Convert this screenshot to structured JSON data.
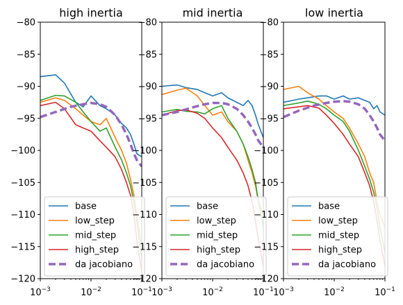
{
  "chart_data": [
    {
      "type": "line",
      "title": "high inertia",
      "xscale": "log",
      "xlim": [
        0.001,
        0.1
      ],
      "ylim": [
        -120,
        -80
      ],
      "yticks": [
        "−80",
        "−85",
        "−90",
        "−95",
        "−100",
        "−105",
        "−110",
        "−115",
        "−120"
      ],
      "xticks": [
        "10",
        "10",
        "10"
      ],
      "xtick_exponents": [
        "−3",
        "−2",
        "−1"
      ],
      "legend_position": "lower-left",
      "series": [
        {
          "name": "base",
          "color": "#1f77b4",
          "x": [
            0.001,
            0.002,
            0.003,
            0.005,
            0.007,
            0.01,
            0.015,
            0.02,
            0.03,
            0.04,
            0.05,
            0.06,
            0.07,
            0.08,
            0.1
          ],
          "y": [
            -88.5,
            -88.2,
            -89.5,
            -92.5,
            -93.2,
            -91.5,
            -93,
            -93.5,
            -94.5,
            -95.8,
            -96.5,
            -97.5,
            -99,
            -100.5,
            -101
          ]
        },
        {
          "name": "low_step",
          "color": "#ff7f0e",
          "x": [
            0.001,
            0.002,
            0.003,
            0.005,
            0.007,
            0.01,
            0.015,
            0.02,
            0.03,
            0.04,
            0.05,
            0.06,
            0.07,
            0.08,
            0.1
          ],
          "y": [
            -92.5,
            -91.8,
            -92.2,
            -93.5,
            -94.5,
            -95.5,
            -96,
            -95,
            -98,
            -100,
            -102,
            -104.5,
            -107,
            -110,
            -115
          ]
        },
        {
          "name": "mid_step",
          "color": "#2ca02c",
          "x": [
            0.001,
            0.002,
            0.003,
            0.005,
            0.007,
            0.01,
            0.015,
            0.02,
            0.03,
            0.04,
            0.05,
            0.06,
            0.07,
            0.08,
            0.1
          ],
          "y": [
            -92.2,
            -91.4,
            -91.5,
            -92.5,
            -94,
            -95.5,
            -97,
            -96.5,
            -99.5,
            -101.5,
            -103.5,
            -105.5,
            -108,
            -111,
            -117
          ]
        },
        {
          "name": "high_step",
          "color": "#d62728",
          "x": [
            0.001,
            0.002,
            0.003,
            0.005,
            0.007,
            0.01,
            0.015,
            0.02,
            0.03,
            0.04,
            0.05,
            0.06,
            0.07,
            0.08,
            0.1
          ],
          "y": [
            -93,
            -92.5,
            -93.5,
            -96,
            -96.5,
            -97,
            -98.5,
            -99.5,
            -101,
            -103,
            -105,
            -107,
            -110,
            -114,
            -119
          ]
        },
        {
          "name": "da jacobiano",
          "color": "#9467bd",
          "dashed": true,
          "x": [
            0.001,
            0.002,
            0.004,
            0.007,
            0.01,
            0.015,
            0.02,
            0.03,
            0.04,
            0.05,
            0.06,
            0.07,
            0.08,
            0.1
          ],
          "y": [
            -94.8,
            -94,
            -93.2,
            -92.8,
            -92.6,
            -92.8,
            -93.2,
            -94.5,
            -96,
            -97.5,
            -99,
            -100.5,
            -101.5,
            -102.5
          ]
        }
      ]
    },
    {
      "type": "line",
      "title": "mid inertia",
      "xscale": "log",
      "xlim": [
        0.001,
        0.1
      ],
      "ylim": [
        -120,
        -80
      ],
      "yticks": [
        "−80",
        "−85",
        "−90",
        "−95",
        "−100",
        "−105",
        "−110",
        "−115",
        "−120"
      ],
      "xticks": [
        "10",
        "10",
        "10"
      ],
      "xtick_exponents": [
        "−3",
        "−2",
        "−1"
      ],
      "legend_position": "lower-left",
      "series": [
        {
          "name": "base",
          "color": "#1f77b4",
          "x": [
            0.001,
            0.002,
            0.003,
            0.005,
            0.007,
            0.01,
            0.015,
            0.02,
            0.03,
            0.04,
            0.05,
            0.06,
            0.07,
            0.08,
            0.1
          ],
          "y": [
            -90,
            -89.8,
            -90.2,
            -90.5,
            -91,
            -91.5,
            -91,
            -91.8,
            -92.5,
            -93,
            -92.2,
            -93,
            -94.5,
            -96,
            -98
          ]
        },
        {
          "name": "low_step",
          "color": "#ff7f0e",
          "x": [
            0.001,
            0.002,
            0.003,
            0.005,
            0.007,
            0.01,
            0.015,
            0.02,
            0.03,
            0.04,
            0.05,
            0.06,
            0.07,
            0.08,
            0.1
          ],
          "y": [
            -91.3,
            -90.6,
            -90.3,
            -91.5,
            -93,
            -94.5,
            -94,
            -95.5,
            -97,
            -99,
            -101.5,
            -103.5,
            -105.5,
            -108,
            -110
          ]
        },
        {
          "name": "mid_step",
          "color": "#2ca02c",
          "x": [
            0.001,
            0.002,
            0.003,
            0.005,
            0.007,
            0.01,
            0.015,
            0.02,
            0.03,
            0.04,
            0.05,
            0.06,
            0.07,
            0.08,
            0.1
          ],
          "y": [
            -94,
            -93.6,
            -93.9,
            -94,
            -94.3,
            -93.5,
            -93,
            -95,
            -97,
            -99,
            -101,
            -103,
            -105,
            -108,
            -112
          ]
        },
        {
          "name": "high_step",
          "color": "#d62728",
          "x": [
            0.001,
            0.002,
            0.003,
            0.005,
            0.007,
            0.01,
            0.015,
            0.02,
            0.03,
            0.04,
            0.05,
            0.06,
            0.07,
            0.08,
            0.1
          ],
          "y": [
            -94.5,
            -93.8,
            -93.7,
            -94.2,
            -95,
            -96.5,
            -98,
            -99.5,
            -101.5,
            -103.5,
            -105.5,
            -108,
            -111,
            -114,
            -118
          ]
        },
        {
          "name": "da jacobiano",
          "color": "#9467bd",
          "dashed": true,
          "x": [
            0.001,
            0.002,
            0.004,
            0.007,
            0.01,
            0.015,
            0.02,
            0.03,
            0.04,
            0.05,
            0.06,
            0.07,
            0.08,
            0.1
          ],
          "y": [
            -94.5,
            -94,
            -93.3,
            -92.8,
            -92.6,
            -92.6,
            -92.8,
            -93.5,
            -94.5,
            -95.5,
            -96.5,
            -97.5,
            -98.5,
            -99.5
          ]
        }
      ]
    },
    {
      "type": "line",
      "title": "low inertia",
      "xscale": "log",
      "xlim": [
        0.001,
        0.1
      ],
      "ylim": [
        -120,
        -80
      ],
      "yticks": [
        "−80",
        "−85",
        "−90",
        "−95",
        "−100",
        "−105",
        "−110",
        "−115",
        "−120"
      ],
      "xticks": [
        "10",
        "10",
        "10"
      ],
      "xtick_exponents": [
        "−3",
        "−2",
        "−1"
      ],
      "legend_position": "lower-left",
      "series": [
        {
          "name": "base",
          "color": "#1f77b4",
          "x": [
            0.001,
            0.002,
            0.003,
            0.005,
            0.007,
            0.01,
            0.015,
            0.02,
            0.03,
            0.04,
            0.05,
            0.06,
            0.07,
            0.08,
            0.1
          ],
          "y": [
            -92.5,
            -92,
            -91.8,
            -91.5,
            -91.5,
            -92,
            -91.5,
            -92,
            -91.8,
            -92.2,
            -92.5,
            -93.5,
            -93,
            -94,
            -94.5
          ]
        },
        {
          "name": "low_step",
          "color": "#ff7f0e",
          "x": [
            0.001,
            0.002,
            0.003,
            0.005,
            0.007,
            0.01,
            0.015,
            0.02,
            0.03,
            0.04,
            0.05,
            0.06,
            0.07,
            0.08,
            0.1
          ],
          "y": [
            -90.5,
            -90,
            -91,
            -92,
            -93,
            -94,
            -95,
            -96.5,
            -99,
            -101,
            -103.5,
            -105,
            -108,
            -110,
            -112
          ]
        },
        {
          "name": "mid_step",
          "color": "#2ca02c",
          "x": [
            0.001,
            0.002,
            0.003,
            0.005,
            0.007,
            0.01,
            0.015,
            0.02,
            0.03,
            0.04,
            0.05,
            0.06,
            0.07,
            0.08,
            0.1
          ],
          "y": [
            -93,
            -92.6,
            -92.3,
            -92.8,
            -93.5,
            -94.5,
            -95.5,
            -97,
            -100,
            -102.5,
            -104.5,
            -106.5,
            -109,
            -112,
            -116
          ]
        },
        {
          "name": "high_step",
          "color": "#d62728",
          "x": [
            0.001,
            0.002,
            0.003,
            0.005,
            0.007,
            0.01,
            0.015,
            0.02,
            0.03,
            0.04,
            0.05,
            0.06,
            0.07,
            0.08,
            0.1
          ],
          "y": [
            -93.5,
            -93.2,
            -93,
            -93.4,
            -94.5,
            -95.8,
            -97.5,
            -99,
            -101,
            -103.5,
            -105.5,
            -108,
            -111,
            -114,
            -118
          ]
        },
        {
          "name": "da jacobiano",
          "color": "#9467bd",
          "dashed": true,
          "x": [
            0.001,
            0.002,
            0.004,
            0.007,
            0.01,
            0.015,
            0.02,
            0.03,
            0.04,
            0.05,
            0.06,
            0.07,
            0.08,
            0.1
          ],
          "y": [
            -94.8,
            -93.8,
            -93,
            -92.6,
            -92.4,
            -92.3,
            -92.4,
            -92.8,
            -93.5,
            -94.5,
            -95.5,
            -96.5,
            -97.5,
            -98.5
          ]
        }
      ]
    }
  ]
}
